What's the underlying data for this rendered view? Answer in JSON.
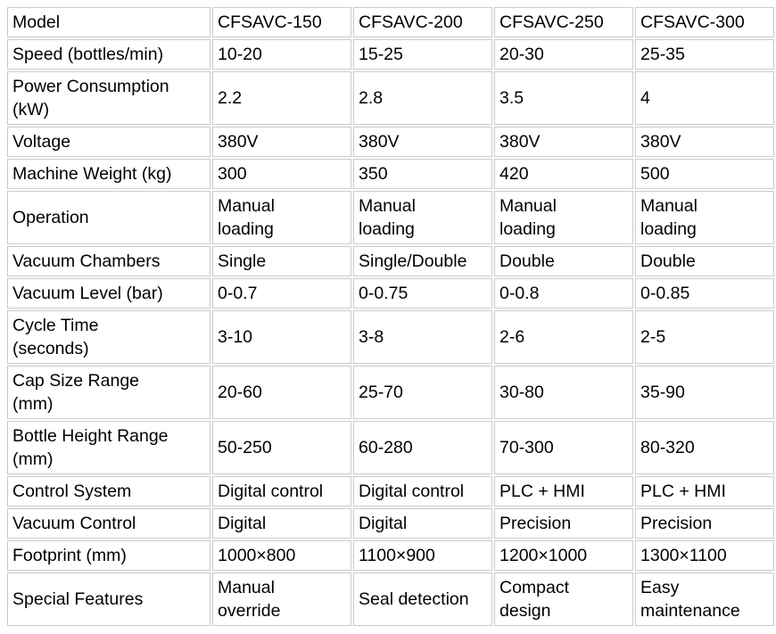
{
  "page": {
    "background_color": "#ffffff",
    "text_color": "#000000",
    "border_color": "#cbcbcb"
  },
  "table": {
    "header": {
      "label": "Model",
      "values": [
        "CFSAVC-150",
        "CFSAVC-200",
        "CFSAVC-250",
        "CFSAVC-300"
      ]
    },
    "rows": [
      {
        "label": "Speed (bottles/min)",
        "values": [
          "10-20",
          "15-25",
          "20-30",
          "25-35"
        ]
      },
      {
        "label": "Power Consumption\n(kW)",
        "values": [
          "2.2",
          "2.8",
          "3.5",
          "4"
        ]
      },
      {
        "label": "Voltage",
        "values": [
          "380V",
          "380V",
          "380V",
          "380V"
        ]
      },
      {
        "label": "Machine Weight (kg)",
        "values": [
          "300",
          "350",
          "420",
          "500"
        ]
      },
      {
        "label": "Operation",
        "values": [
          "Manual\nloading",
          "Manual\nloading",
          "Manual\nloading",
          "Manual\nloading"
        ]
      },
      {
        "label": "Vacuum Chambers",
        "values": [
          "Single",
          "Single/Double",
          "Double",
          "Double"
        ]
      },
      {
        "label": "Vacuum Level (bar)",
        "values": [
          "0-0.7",
          "0-0.75",
          "0-0.8",
          "0-0.85"
        ]
      },
      {
        "label": "Cycle Time\n(seconds)",
        "values": [
          "3-10",
          "3-8",
          "2-6",
          "2-5"
        ]
      },
      {
        "label": "Cap Size Range\n(mm)",
        "values": [
          "20-60",
          "25-70",
          "30-80",
          "35-90"
        ]
      },
      {
        "label": "Bottle Height Range\n(mm)",
        "values": [
          "50-250",
          "60-280",
          "70-300",
          "80-320"
        ]
      },
      {
        "label": "Control System",
        "values": [
          "Digital control",
          "Digital control",
          "PLC + HMI",
          "PLC + HMI"
        ]
      },
      {
        "label": "Vacuum Control",
        "values": [
          "Digital",
          "Digital",
          "Precision",
          "Precision"
        ]
      },
      {
        "label": "Footprint (mm)",
        "values": [
          "1000×800",
          "1100×900",
          "1200×1000",
          "1300×1100"
        ]
      },
      {
        "label": "Special Features",
        "values": [
          "Manual\noverride",
          "Seal detection",
          "Compact\ndesign",
          "Easy\nmaintenance"
        ]
      }
    ]
  }
}
